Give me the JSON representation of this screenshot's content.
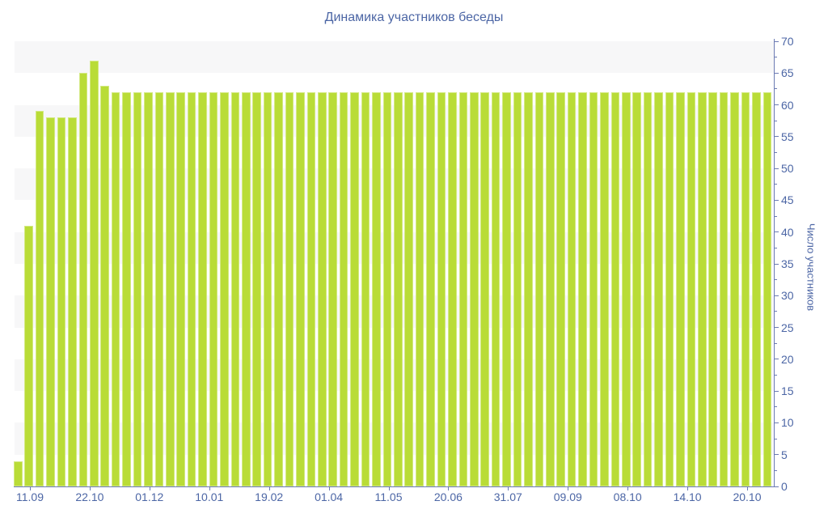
{
  "page": {
    "title": "Динамика участников беседы"
  },
  "chart_data": {
    "type": "bar",
    "title": "Динамика участников беседы",
    "xlabel": "",
    "ylabel": "Число участников",
    "ylim": [
      0,
      70
    ],
    "y_tick_step": 5,
    "y_minor_tick_step": 2.5,
    "y_axis_position": "right",
    "zebra_bands": true,
    "legend": "none",
    "y_tick_labels": [
      "0",
      "5",
      "10",
      "15",
      "20",
      "25",
      "30",
      "35",
      "40",
      "45",
      "50",
      "55",
      "60",
      "65",
      "70"
    ],
    "x_tick_labels": [
      "11.09",
      "22.10",
      "01.12",
      "10.01",
      "19.02",
      "01.04",
      "11.05",
      "20.06",
      "31.07",
      "09.09",
      "08.10",
      "14.10",
      "20.10"
    ],
    "values": [
      4,
      41,
      59,
      58,
      58,
      58,
      65,
      67,
      63,
      62,
      62,
      62,
      62,
      62,
      62,
      62,
      62,
      62,
      62,
      62,
      62,
      62,
      62,
      62,
      62,
      62,
      62,
      62,
      62,
      62,
      62,
      62,
      62,
      62,
      62,
      62,
      62,
      62,
      62,
      62,
      62,
      62,
      62,
      62,
      62,
      62,
      62,
      62,
      62,
      62,
      62,
      62,
      62,
      62,
      62,
      62,
      62,
      62,
      62,
      62,
      62,
      62,
      62,
      62,
      62,
      62,
      62,
      62,
      62,
      62
    ],
    "colors": {
      "bar": "#b9dc37",
      "axis": "#6b7ab3",
      "text": "#4c66a5",
      "band": "#f7f7f8",
      "background": "#ffffff"
    }
  }
}
